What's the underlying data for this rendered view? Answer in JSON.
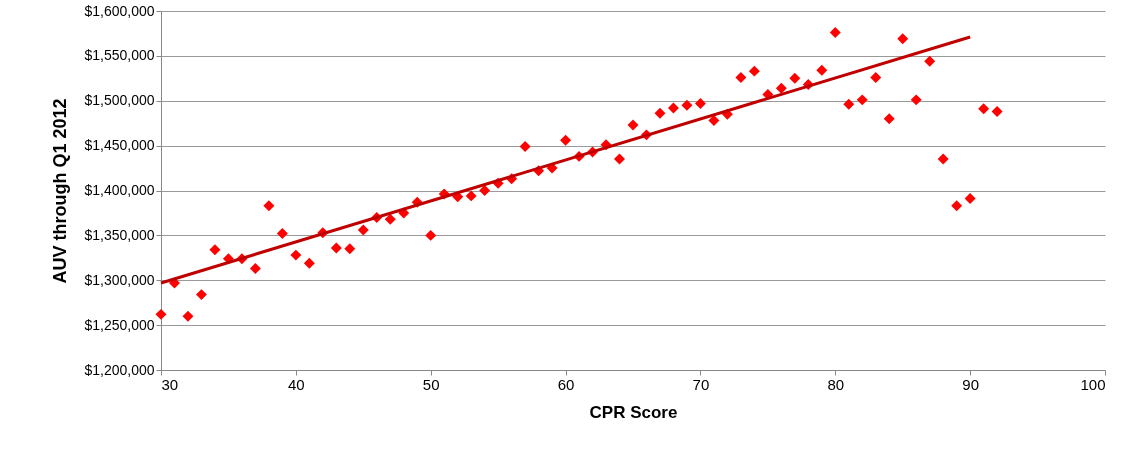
{
  "chart_data": {
    "type": "scatter",
    "xlabel": "CPR Score",
    "ylabel": "AUV through  Q1 2012",
    "xlim": [
      30,
      100
    ],
    "xticks": [
      30,
      40,
      50,
      60,
      70,
      80,
      90,
      100
    ],
    "ylim": [
      1200000,
      1600000
    ],
    "yticks": [
      {
        "value": 1200000,
        "label": "$1,200,000"
      },
      {
        "value": 1250000,
        "label": "$1,250,000"
      },
      {
        "value": 1300000,
        "label": "$1,300,000"
      },
      {
        "value": 1350000,
        "label": "$1,350,000"
      },
      {
        "value": 1400000,
        "label": "$1,400,000"
      },
      {
        "value": 1450000,
        "label": "$1,450,000"
      },
      {
        "value": 1500000,
        "label": "$1,500,000"
      },
      {
        "value": 1550000,
        "label": "$1,550,000"
      },
      {
        "value": 1600000,
        "label": "$1,600,000"
      }
    ],
    "grid": "y",
    "x": [
      30,
      31,
      32,
      33,
      34,
      35,
      36,
      37,
      38,
      39,
      40,
      41,
      42,
      43,
      44,
      45,
      46,
      47,
      48,
      49,
      50,
      51,
      52,
      53,
      54,
      55,
      56,
      57,
      58,
      59,
      60,
      61,
      62,
      63,
      64,
      65,
      66,
      67,
      68,
      69,
      70,
      71,
      72,
      73,
      74,
      75,
      76,
      77,
      78,
      79,
      80,
      81,
      82,
      83,
      84,
      85,
      86,
      87,
      88,
      89,
      90,
      91,
      92
    ],
    "series": [
      {
        "marker": "diamond",
        "color": "#ff0000",
        "values": [
          1262000,
          1297000,
          1260000,
          1284000,
          1334000,
          1324000,
          1324000,
          1313000,
          1383000,
          1352000,
          1328000,
          1319000,
          1353000,
          1336000,
          1335000,
          1356000,
          1370000,
          1368000,
          1375000,
          1387000,
          1350000,
          1396000,
          1393000,
          1394000,
          1400000,
          1408000,
          1413000,
          1449000,
          1422000,
          1425000,
          1456000,
          1438000,
          1443000,
          1451000,
          1435000,
          1473000,
          1462000,
          1486000,
          1492000,
          1495000,
          1497000,
          1478000,
          1485000,
          1526000,
          1533000,
          1507000,
          1514000,
          1525000,
          1518000,
          1534000,
          1576000,
          1496000,
          1501000,
          1526000,
          1480000,
          1569000,
          1501000,
          1544000,
          1435000,
          1383000,
          1391000,
          1491000,
          1488000
        ]
      },
      {
        "type": "line",
        "marker": "none",
        "line_style": "solid",
        "color": "#c00000",
        "x": [
          30,
          90
        ],
        "values": [
          1297000,
          1571000
        ]
      }
    ]
  }
}
